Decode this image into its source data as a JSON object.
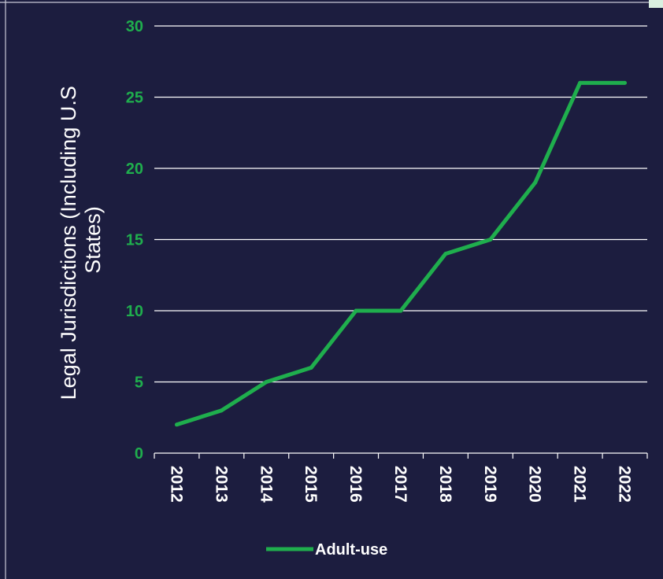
{
  "chart_data": {
    "type": "line",
    "ylabel": "Legal Jurisdictions (Including U.S States)",
    "ylabel_lines": [
      "Legal Jurisdictions (Including U.S",
      "States)"
    ],
    "xlabel": "",
    "categories": [
      "2012",
      "2013",
      "2014",
      "2015",
      "2016",
      "2017",
      "2018",
      "2019",
      "2020",
      "2021",
      "2022"
    ],
    "series": [
      {
        "name": "Adult-use",
        "color": "#1fae4d",
        "values": [
          2,
          3,
          5,
          6,
          10,
          10,
          14,
          15,
          19,
          26,
          26
        ]
      }
    ],
    "ylim": [
      0,
      30
    ],
    "yticks": [
      0,
      5,
      10,
      15,
      20,
      25,
      30
    ],
    "grid": true,
    "legend_position": "bottom"
  },
  "colors": {
    "background": "#1c1d3f",
    "gridline": "#ffffff",
    "tick_label_y": "#1fae4d",
    "tick_label_x": "#ffffff",
    "line": "#1fae4d"
  }
}
